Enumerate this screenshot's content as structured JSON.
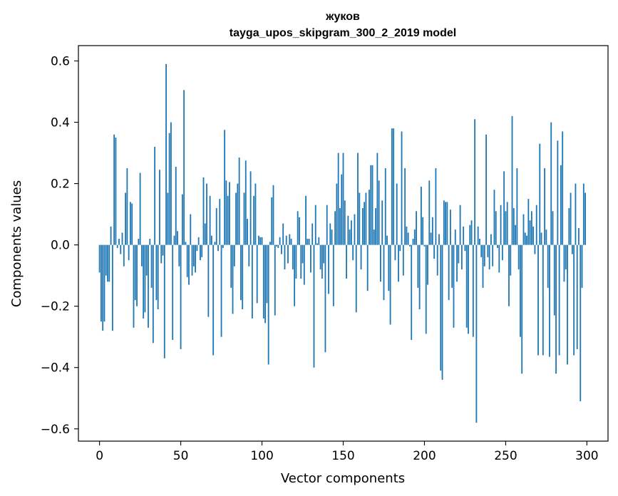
{
  "chart_data": {
    "type": "bar",
    "title_line1": "жуков",
    "title_line2": "tayga_upos_skipgram_300_2_2019 model",
    "xlabel": "Vector components",
    "ylabel": "Components values",
    "xlim": [
      -13,
      313
    ],
    "ylim": [
      -0.64,
      0.65
    ],
    "xticks": [
      0,
      50,
      100,
      150,
      200,
      250,
      300
    ],
    "xtick_labels": [
      "0",
      "50",
      "100",
      "150",
      "200",
      "250",
      "300"
    ],
    "yticks": [
      0.6,
      0.4,
      0.2,
      0.0,
      -0.2,
      -0.4,
      -0.6
    ],
    "ytick_labels": [
      "0.6",
      "0.4",
      "0.2",
      "0.0",
      "−0.2",
      "−0.4",
      "−0.6"
    ],
    "bar_color": "#1f77b4",
    "values": [
      -0.09,
      -0.25,
      -0.28,
      -0.25,
      -0.1,
      -0.12,
      -0.12,
      0.06,
      -0.28,
      0.36,
      0.35,
      -0.01,
      0.02,
      -0.03,
      0.04,
      -0.07,
      0.17,
      0.25,
      -0.05,
      0.14,
      0.135,
      -0.27,
      -0.18,
      -0.2,
      0.02,
      0.235,
      -0.07,
      -0.24,
      -0.22,
      -0.1,
      -0.27,
      0.02,
      -0.14,
      -0.32,
      0.32,
      -0.18,
      -0.21,
      0.245,
      -0.06,
      -0.035,
      -0.37,
      0.59,
      0.17,
      0.365,
      0.4,
      -0.31,
      0.03,
      0.255,
      0.045,
      -0.07,
      -0.34,
      0.165,
      0.505,
      0.01,
      -0.105,
      -0.13,
      0.1,
      -0.1,
      -0.07,
      -0.09,
      -0.02,
      0.025,
      -0.05,
      -0.04,
      0.22,
      0.07,
      0.2,
      -0.235,
      0.16,
      0.03,
      -0.36,
      0.01,
      0.12,
      -0.02,
      0.15,
      -0.3,
      -0.01,
      0.375,
      0.21,
      0.16,
      0.205,
      -0.14,
      -0.225,
      -0.07,
      0.17,
      0.2,
      0.285,
      -0.18,
      -0.21,
      0.17,
      0.275,
      0.085,
      -0.07,
      0.24,
      -0.24,
      0.16,
      0.2,
      -0.19,
      0.03,
      0.025,
      0.025,
      -0.24,
      -0.255,
      -0.19,
      -0.39,
      0.01,
      0.155,
      0.195,
      -0.23,
      -0.005,
      -0.01,
      0.025,
      -0.03,
      0.07,
      -0.08,
      0.03,
      -0.06,
      0.035,
      0.02,
      -0.08,
      -0.2,
      -0.11,
      0.11,
      0.09,
      -0.11,
      -0.06,
      -0.13,
      0.16,
      0.02,
      0.02,
      -0.09,
      0.07,
      -0.4,
      0.13,
      0.005,
      0.025,
      -0.08,
      -0.11,
      -0.06,
      -0.35,
      0.13,
      -0.16,
      0.07,
      0.05,
      -0.2,
      0.11,
      0.2,
      0.3,
      0.12,
      0.23,
      0.3,
      0.145,
      -0.11,
      0.095,
      0.05,
      0.08,
      -0.05,
      0.1,
      -0.22,
      0.3,
      0.17,
      -0.08,
      0.12,
      0.14,
      0.17,
      -0.15,
      0.18,
      0.26,
      0.26,
      0.05,
      0.12,
      0.3,
      0.21,
      -0.12,
      0.145,
      -0.18,
      0.25,
      0.03,
      -0.15,
      -0.26,
      0.38,
      0.38,
      -0.05,
      0.2,
      -0.12,
      -0.02,
      0.37,
      -0.1,
      0.25,
      0.06,
      0.04,
      -0.005,
      -0.31,
      0.02,
      0.05,
      0.11,
      -0.14,
      -0.21,
      0.19,
      0.09,
      -0.005,
      -0.29,
      -0.13,
      0.21,
      0.04,
      0.09,
      -0.045,
      0.25,
      -0.1,
      0.035,
      -0.41,
      -0.44,
      0.145,
      0.14,
      0.14,
      -0.18,
      0.115,
      -0.14,
      -0.27,
      0.05,
      -0.12,
      -0.06,
      0.13,
      -0.08,
      0.06,
      -0.02,
      -0.27,
      -0.29,
      0.065,
      0.08,
      -0.3,
      0.41,
      -0.58,
      0.06,
      0.02,
      -0.04,
      -0.14,
      -0.07,
      0.36,
      -0.04,
      -0.08,
      0.035,
      -0.07,
      0.18,
      0.11,
      -0.01,
      -0.09,
      0.13,
      -0.05,
      0.24,
      0.11,
      0.14,
      -0.2,
      -0.1,
      0.42,
      0.12,
      0.065,
      0.25,
      -0.08,
      -0.3,
      -0.42,
      0.1,
      0.04,
      0.03,
      0.15,
      0.08,
      0.11,
      0.06,
      -0.03,
      0.13,
      -0.36,
      0.33,
      0.04,
      -0.36,
      0.25,
      0.05,
      -0.14,
      -0.365,
      0.4,
      0.11,
      -0.23,
      -0.42,
      0.34,
      -0.36,
      0.26,
      0.37,
      -0.12,
      -0.08,
      -0.39,
      0.12,
      0.17,
      -0.03,
      -0.36,
      0.2,
      -0.34,
      0.055,
      -0.51,
      -0.14,
      0.2,
      0.17
    ]
  }
}
